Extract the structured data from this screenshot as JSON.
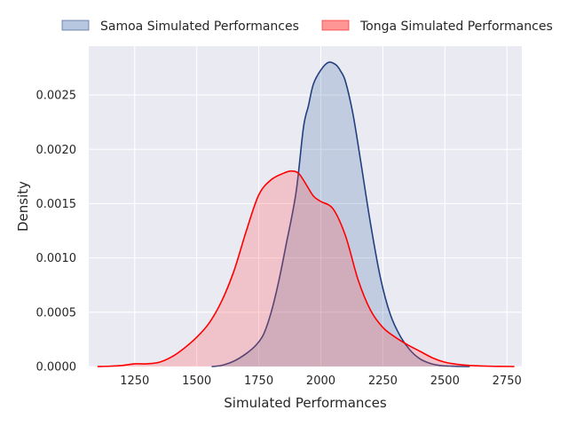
{
  "chart_data": {
    "type": "area",
    "title": "",
    "xlabel": "Simulated Performances",
    "ylabel": "Density",
    "xlim": [
      1065,
      2810
    ],
    "ylim": [
      0,
      0.00295
    ],
    "xticks": [
      1250,
      1500,
      1750,
      2000,
      2250,
      2500,
      2750
    ],
    "xtick_labels": [
      "1250",
      "1500",
      "1750",
      "2000",
      "2250",
      "2500",
      "2750"
    ],
    "yticks": [
      0,
      0.0005,
      0.001,
      0.0015,
      0.002,
      0.0025
    ],
    "ytick_labels": [
      "0.0000",
      "0.0005",
      "0.0010",
      "0.0015",
      "0.0020",
      "0.0025"
    ],
    "grid": true,
    "legend_position": "top",
    "series": [
      {
        "name": "Samoa Simulated Performances",
        "line_color": "#22407f",
        "fill_color": "#4c72b0",
        "x": [
          1560,
          1600,
          1650,
          1700,
          1740,
          1770,
          1800,
          1830,
          1860,
          1900,
          1930,
          1950,
          1970,
          2000,
          2030,
          2060,
          2080,
          2100,
          2130,
          2160,
          2200,
          2240,
          2280,
          2320,
          2360,
          2400,
          2440,
          2480,
          2520,
          2560,
          2600
        ],
        "y": [
          0.0,
          1e-05,
          5e-05,
          0.00012,
          0.0002,
          0.0003,
          0.0005,
          0.00078,
          0.00112,
          0.0016,
          0.0022,
          0.0024,
          0.0026,
          0.00273,
          0.0028,
          0.00278,
          0.00272,
          0.00262,
          0.00232,
          0.0019,
          0.00132,
          0.00082,
          0.00048,
          0.00028,
          0.00015,
          7e-05,
          3e-05,
          1e-05,
          4e-06,
          1e-06,
          0.0
        ]
      },
      {
        "name": "Tonga Simulated Performances",
        "line_color": "#ff0000",
        "fill_color": "#ff5050",
        "x": [
          1100,
          1150,
          1200,
          1250,
          1300,
          1350,
          1400,
          1450,
          1500,
          1550,
          1600,
          1650,
          1700,
          1750,
          1800,
          1850,
          1880,
          1910,
          1940,
          1970,
          2000,
          2050,
          2100,
          2150,
          2200,
          2250,
          2300,
          2350,
          2400,
          2450,
          2500,
          2550,
          2600,
          2650,
          2700,
          2750,
          2780
        ],
        "y": [
          0.0,
          3e-06,
          1e-05,
          2.5e-05,
          2.5e-05,
          4e-05,
          9e-05,
          0.00017,
          0.00027,
          0.0004,
          0.0006,
          0.00088,
          0.00125,
          0.00158,
          0.00172,
          0.00178,
          0.0018,
          0.00178,
          0.00168,
          0.00157,
          0.00152,
          0.00145,
          0.0012,
          0.0008,
          0.00052,
          0.00036,
          0.00027,
          0.0002,
          0.00014,
          8e-05,
          4e-05,
          2e-05,
          1e-05,
          5e-06,
          2e-06,
          1e-06,
          0.0
        ]
      }
    ]
  }
}
